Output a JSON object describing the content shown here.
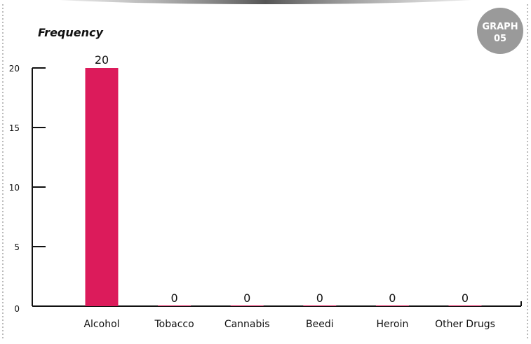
{
  "badge": {
    "line1": "GRAPH",
    "line2": "05"
  },
  "colors": {
    "bar": "#dc1b5b",
    "axis": "#111111",
    "badge": "#9a9a9a",
    "frame": "#777777",
    "top_stripe": "#555555"
  },
  "chart_data": {
    "type": "bar",
    "ylabel": "Frequency",
    "xlabel": "",
    "categories": [
      "Alcohol",
      "Tobacco",
      "Cannabis",
      "Beedi",
      "Heroin",
      "Other Drugs"
    ],
    "values": [
      20,
      0,
      0,
      0,
      0,
      0
    ],
    "ylim": [
      0,
      20
    ],
    "yticks": [
      0,
      5,
      10,
      15,
      20
    ],
    "grid": false,
    "legend": "none"
  }
}
